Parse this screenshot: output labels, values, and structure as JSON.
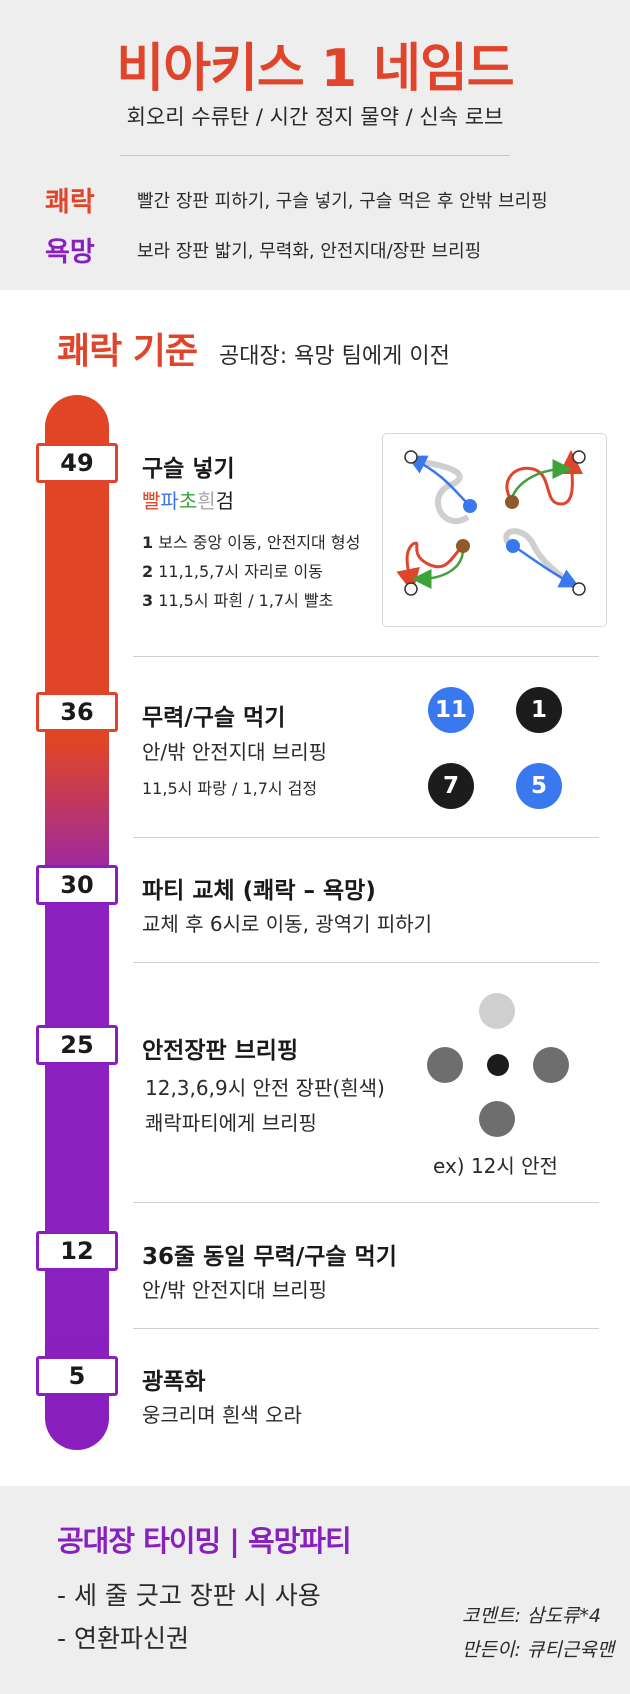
{
  "header": {
    "title": "비아키스 1 네임드",
    "subtitle": "회오리 수류탄 / 시간 정지 물약 / 신속 로브",
    "rows": [
      {
        "tag": "쾌락",
        "desc": "빨간 장판 피하기, 구슬 넣기, 구슬 먹은 후 안밖 브리핑"
      },
      {
        "tag": "욕망",
        "desc": "보라 장판 밟기, 무력화, 안전지대/장판 브리핑"
      }
    ]
  },
  "section": {
    "title": "쾌락 기준",
    "note": "공대장: 욕망 팀에게 이전"
  },
  "colors": {
    "red": "#e0442a",
    "purple": "#8a1fc0",
    "blue": "#3a78f0",
    "dark": "#1c1c1c"
  },
  "items": [
    {
      "badge": "49",
      "title": "구슬 넣기",
      "color_words": [
        "빨",
        "파",
        "초",
        "흰",
        "검"
      ],
      "notes": [
        {
          "num": "1",
          "text": "보스 중앙 이동, 안전지대 형성"
        },
        {
          "num": "2",
          "text": "11,1,5,7시 자리로 이동"
        },
        {
          "num": "3",
          "text": "11,5시 파흰 / 1,7시 빨초"
        }
      ]
    },
    {
      "badge": "36",
      "title": "무력/구슬 먹기",
      "line": "안/밖 안전지대 브리핑",
      "note": "11,5시 파랑 / 1,7시 검정",
      "circles": [
        "11",
        "1",
        "7",
        "5"
      ]
    },
    {
      "badge": "30",
      "title": "파티 교체 (쾌락 – 욕망)",
      "line": "교체 후 6시로 이동, 광역기 피하기"
    },
    {
      "badge": "25",
      "title": "안전장판 브리핑",
      "line1": "12,3,6,9시 안전 장판(흰색)",
      "line2": "쾌락파티에게 브리핑",
      "caption": "ex) 12시 안전"
    },
    {
      "badge": "12",
      "title": "36줄 동일 무력/구슬 먹기",
      "line": "안/밖 안전지대 브리핑"
    },
    {
      "badge": "5",
      "title": "광폭화",
      "line": "웅크리며 흰색 오라"
    }
  ],
  "footer": {
    "title": "공대장 타이밍 | 욕망파티",
    "lines": [
      "- 세 줄 긋고 장판 시 사용",
      "- 연환파신권"
    ],
    "credits": [
      "코멘트: 삼도류*4",
      "만든이: 큐티근육맨"
    ]
  }
}
